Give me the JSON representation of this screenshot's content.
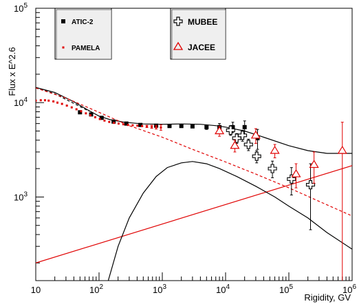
{
  "chart_data": {
    "type": "scatter",
    "xlabel": "Rigidity, GV",
    "ylabel": "Flux x E^2.6",
    "x_scale": "log",
    "y_scale": "log",
    "xlim": [
      10,
      1000000
    ],
    "ylim": [
      130,
      100000
    ],
    "x_ticks": [
      {
        "value": 10,
        "base": "10",
        "exp": ""
      },
      {
        "value": 100,
        "base": "10",
        "exp": "2"
      },
      {
        "value": 1000,
        "base": "10",
        "exp": "3"
      },
      {
        "value": 10000,
        "base": "10",
        "exp": "4"
      },
      {
        "value": 100000,
        "base": "10",
        "exp": "5"
      },
      {
        "value": 1000000,
        "base": "10",
        "exp": "6"
      }
    ],
    "y_ticks": [
      {
        "value": 1000,
        "base": "10",
        "exp": "3"
      },
      {
        "value": 10000,
        "base": "10",
        "exp": "4"
      },
      {
        "value": 100000,
        "base": "10",
        "exp": "5"
      }
    ],
    "legend": [
      {
        "label": "ATIC-2",
        "marker": "square",
        "color": "#000000"
      },
      {
        "label": "PAMELA",
        "marker": "dot",
        "color": "#e00000"
      },
      {
        "label": "MUBEE",
        "marker": "cross",
        "color": "#000000"
      },
      {
        "label": "JACEE",
        "marker": "triangle",
        "color": "#e00000"
      }
    ],
    "series": [
      {
        "name": "ATIC-2",
        "marker": "square",
        "color": "#000000",
        "points": [
          {
            "x": 50,
            "y": 7900
          },
          {
            "x": 75,
            "y": 7500
          },
          {
            "x": 110,
            "y": 6900
          },
          {
            "x": 170,
            "y": 6300
          },
          {
            "x": 270,
            "y": 6000
          },
          {
            "x": 450,
            "y": 5800
          },
          {
            "x": 800,
            "y": 5700
          },
          {
            "x": 1300,
            "y": 5650
          },
          {
            "x": 2000,
            "y": 5650
          },
          {
            "x": 3000,
            "y": 5600
          },
          {
            "x": 5000,
            "y": 5500,
            "yerr": 300
          },
          {
            "x": 8000,
            "y": 5500,
            "yerr": 500
          },
          {
            "x": 13000,
            "y": 5500,
            "yerr": 700
          },
          {
            "x": 20000,
            "y": 5500,
            "yerr": 900
          },
          {
            "x": 32000,
            "y": 4200,
            "yerr": 1000
          }
        ]
      },
      {
        "name": "PAMELA",
        "marker": "dot",
        "color": "#e00000",
        "points": [
          {
            "x": 10,
            "y": 10500
          },
          {
            "x": 12,
            "y": 10600
          },
          {
            "x": 14,
            "y": 10600
          },
          {
            "x": 16,
            "y": 10500
          },
          {
            "x": 19,
            "y": 10300
          },
          {
            "x": 22,
            "y": 10000
          },
          {
            "x": 26,
            "y": 9700
          },
          {
            "x": 31,
            "y": 9300
          },
          {
            "x": 37,
            "y": 8900
          },
          {
            "x": 44,
            "y": 8500
          },
          {
            "x": 52,
            "y": 8100
          },
          {
            "x": 62,
            "y": 7700
          },
          {
            "x": 73,
            "y": 7350
          },
          {
            "x": 87,
            "y": 7000
          },
          {
            "x": 103,
            "y": 6700
          },
          {
            "x": 122,
            "y": 6450
          },
          {
            "x": 145,
            "y": 6250
          },
          {
            "x": 172,
            "y": 6100
          },
          {
            "x": 204,
            "y": 6000
          },
          {
            "x": 242,
            "y": 5900
          },
          {
            "x": 287,
            "y": 5800
          },
          {
            "x": 340,
            "y": 5750
          },
          {
            "x": 404,
            "y": 5700
          },
          {
            "x": 480,
            "y": 5650
          },
          {
            "x": 570,
            "y": 5600,
            "yerr": 150
          },
          {
            "x": 680,
            "y": 5550,
            "yerr": 200
          },
          {
            "x": 800,
            "y": 5500,
            "yerr": 250
          },
          {
            "x": 950,
            "y": 5450,
            "yerr": 350
          }
        ]
      },
      {
        "name": "MUBEE",
        "marker": "cross",
        "color": "#000000",
        "points": [
          {
            "x": 12000,
            "y": 5100,
            "yerr": 600
          },
          {
            "x": 15000,
            "y": 4200,
            "yerr": 500
          },
          {
            "x": 18500,
            "y": 4500,
            "yerr": 600
          },
          {
            "x": 23000,
            "y": 3600,
            "yerr": 500
          },
          {
            "x": 31000,
            "y": 2700,
            "yerr": 400
          },
          {
            "x": 55000,
            "y": 2000,
            "yerr": 400
          },
          {
            "x": 110000,
            "y": 1550,
            "yerr": 500
          },
          {
            "x": 220000,
            "y": 1350,
            "yerr": 900
          }
        ]
      },
      {
        "name": "JACEE",
        "marker": "triangle",
        "color": "#e00000",
        "points": [
          {
            "x": 8000,
            "y": 5000,
            "yerr": 600
          },
          {
            "x": 14000,
            "y": 3500,
            "yerr": 500
          },
          {
            "x": 30000,
            "y": 4500,
            "yerr": 800
          },
          {
            "x": 60000,
            "y": 3100,
            "yerr": 500
          },
          {
            "x": 130000,
            "y": 1750,
            "yerr": 500
          },
          {
            "x": 250000,
            "y": 2200,
            "yerr": 800
          },
          {
            "x": 700000,
            "y": 3100,
            "yerr_low": 2980,
            "yerr_high": 3100
          }
        ]
      }
    ],
    "curves": [
      {
        "style": "solid",
        "color": "#000000",
        "points": [
          [
            10,
            14500
          ],
          [
            20,
            12800
          ],
          [
            40,
            10200
          ],
          [
            70,
            8200
          ],
          [
            100,
            7200
          ],
          [
            150,
            6600
          ],
          [
            250,
            6200
          ],
          [
            500,
            5950
          ],
          [
            1000,
            5900
          ],
          [
            2000,
            5950
          ],
          [
            4000,
            5900
          ],
          [
            7000,
            5700
          ],
          [
            10000,
            5500
          ],
          [
            20000,
            5000
          ],
          [
            40000,
            4300
          ],
          [
            100000,
            3500
          ],
          [
            200000,
            3100
          ],
          [
            400000,
            2900
          ],
          [
            1000000,
            2900
          ]
        ]
      },
      {
        "style": "dashed",
        "color": "#000000",
        "points": [
          [
            10,
            14300
          ],
          [
            20,
            12400
          ],
          [
            40,
            9800
          ],
          [
            70,
            8100
          ]
        ]
      },
      {
        "style": "dashed",
        "color": "#e00000",
        "points": [
          [
            10,
            14300
          ],
          [
            30,
            11200
          ],
          [
            100,
            7900
          ],
          [
            300,
            5700
          ],
          [
            1000,
            4300
          ],
          [
            3000,
            3200
          ],
          [
            10000,
            2350
          ],
          [
            30000,
            1750
          ],
          [
            100000,
            1250
          ],
          [
            300000,
            900
          ],
          [
            1000000,
            630
          ]
        ]
      },
      {
        "style": "solid",
        "color": "#e00000",
        "points": [
          [
            10,
            200
          ],
          [
            1000000,
            2150
          ]
        ]
      },
      {
        "style": "solid",
        "color": "#000000",
        "points": [
          [
            140,
            130
          ],
          [
            200,
            300
          ],
          [
            300,
            600
          ],
          [
            500,
            1100
          ],
          [
            800,
            1650
          ],
          [
            1200,
            2050
          ],
          [
            2000,
            2300
          ],
          [
            3000,
            2380
          ],
          [
            5000,
            2250
          ],
          [
            8000,
            2000
          ],
          [
            15000,
            1650
          ],
          [
            30000,
            1300
          ],
          [
            60000,
            1000
          ],
          [
            100000,
            800
          ],
          [
            200000,
            600
          ],
          [
            400000,
            420
          ],
          [
            1000000,
            280
          ]
        ]
      }
    ]
  }
}
